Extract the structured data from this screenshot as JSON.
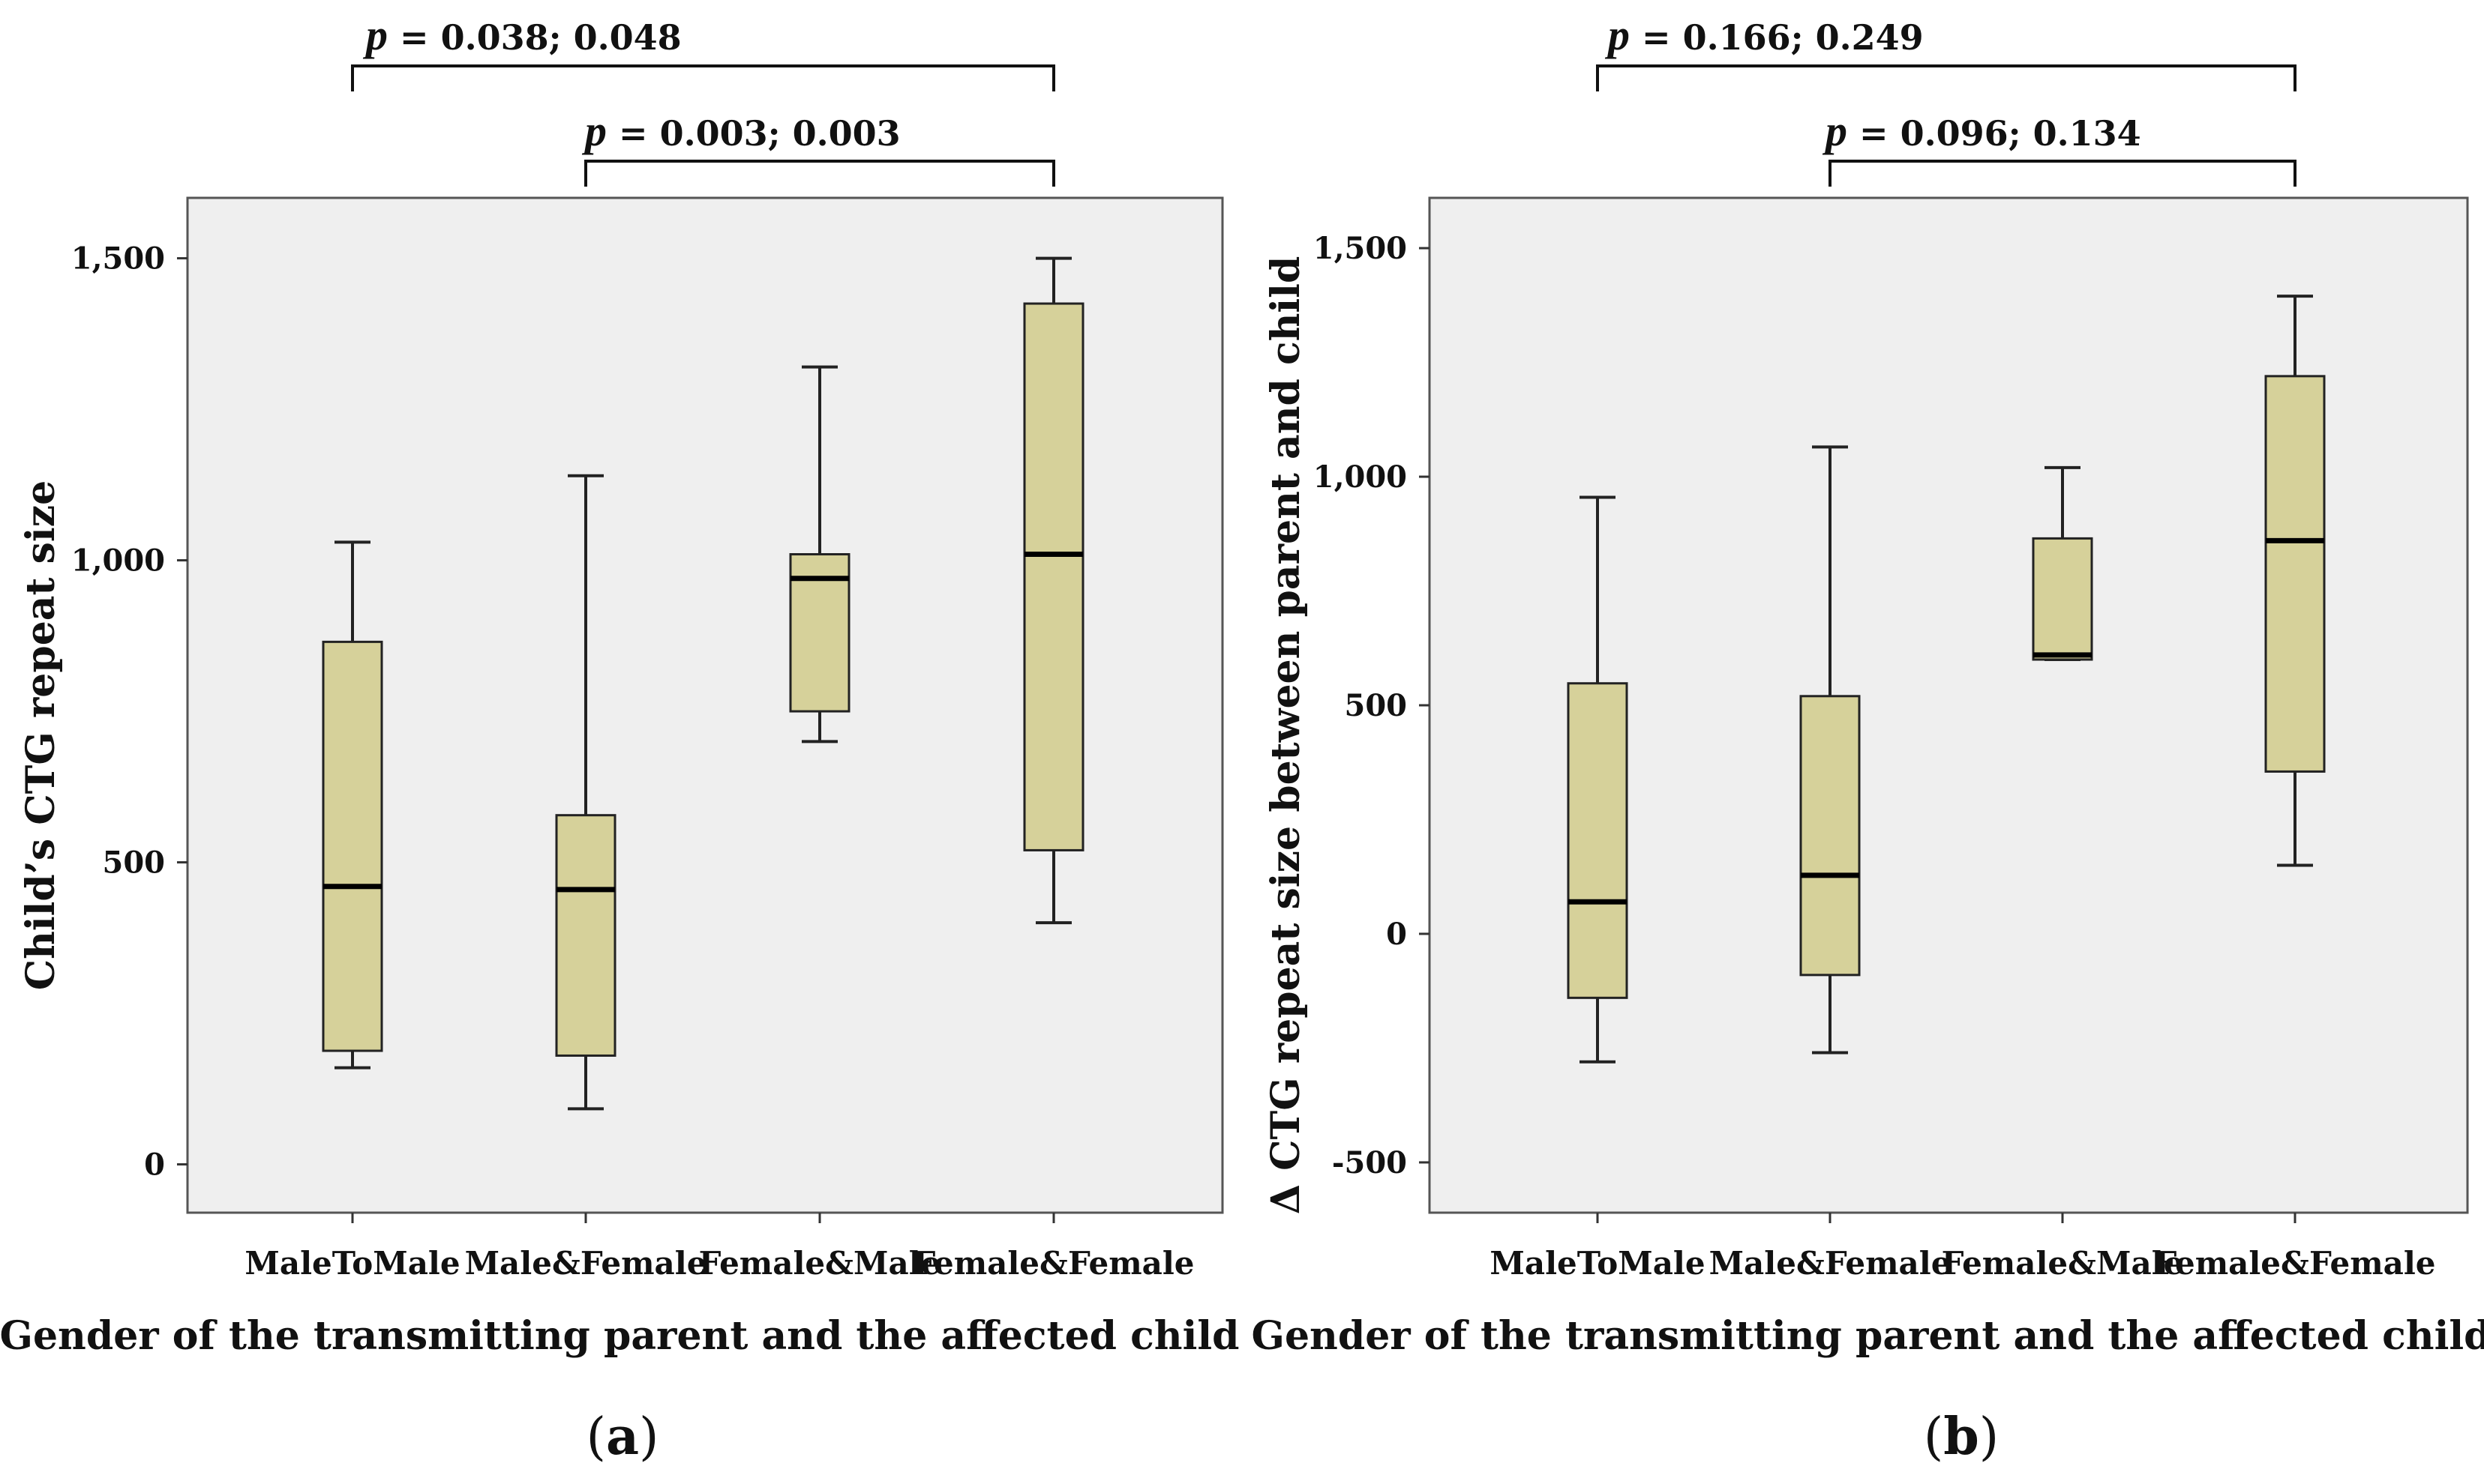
{
  "chart_data": [
    {
      "type": "boxplot",
      "panel_label": "(a)",
      "panel_letter": "a",
      "title": "",
      "xlabel": "Gender of the transmitting parent and the affected child",
      "ylabel": "Child’s CTG repeat size",
      "ylim": [
        -80,
        1600
      ],
      "yticks": [
        0,
        500,
        1000,
        1500
      ],
      "ytick_labels": [
        "0",
        "500",
        "1,000",
        "1,500"
      ],
      "categories": [
        "MaleToMale",
        "Male&Female",
        "Female&Male",
        "Female&Female"
      ],
      "boxes": [
        {
          "category": "MaleToMale",
          "whisker_low": 160,
          "q1": 188,
          "median": 460,
          "q3": 865,
          "whisker_high": 1030
        },
        {
          "category": "Male&Female",
          "whisker_low": 92,
          "q1": 180,
          "median": 455,
          "q3": 578,
          "whisker_high": 1140
        },
        {
          "category": "Female&Male",
          "whisker_low": 700,
          "q1": 750,
          "median": 970,
          "q3": 1010,
          "whisker_high": 1320
        },
        {
          "category": "Female&Female",
          "whisker_low": 400,
          "q1": 520,
          "median": 1010,
          "q3": 1425,
          "whisker_high": 1500
        }
      ],
      "annotations": [
        {
          "from": "MaleToMale",
          "to": "Female&Female",
          "p_symbol": "p",
          "text": " = 0.038; 0.048"
        },
        {
          "from": "Male&Female",
          "to": "Female&Female",
          "p_symbol": "p",
          "text": " = 0.003; 0.003"
        }
      ]
    },
    {
      "type": "boxplot",
      "panel_label": "(b)",
      "panel_letter": "b",
      "title": "",
      "xlabel": "Gender of the transmitting parent and the affected child",
      "ylabel": "Δ CTG repeat size between parent and child",
      "ylim": [
        -610,
        1610
      ],
      "yticks": [
        -500,
        0,
        500,
        1000,
        1500
      ],
      "ytick_labels": [
        "-500",
        "0",
        "500",
        "1,000",
        "1,500"
      ],
      "categories": [
        "MaleToMale",
        "Male&Female",
        "Female&Male",
        "Female&Female"
      ],
      "boxes": [
        {
          "category": "MaleToMale",
          "whisker_low": -280,
          "q1": -140,
          "median": 70,
          "q3": 548,
          "whisker_high": 955
        },
        {
          "category": "Male&Female",
          "whisker_low": -260,
          "q1": -90,
          "median": 128,
          "q3": 520,
          "whisker_high": 1065
        },
        {
          "category": "Female&Male",
          "whisker_low": 600,
          "q1": 600,
          "median": 610,
          "q3": 865,
          "whisker_high": 1020
        },
        {
          "category": "Female&Female",
          "whisker_low": 150,
          "q1": 355,
          "median": 860,
          "q3": 1220,
          "whisker_high": 1395
        }
      ],
      "annotations": [
        {
          "from": "MaleToMale",
          "to": "Female&Female",
          "p_symbol": "p",
          "text": " = 0.166; 0.249"
        },
        {
          "from": "Male&Female",
          "to": "Female&Female",
          "p_symbol": "p",
          "text": " = 0.096; 0.134"
        }
      ]
    }
  ],
  "colors": {
    "plot_background": "#efefef",
    "box_fill": "#d6d19a",
    "line": "#222222",
    "median": "#000000"
  }
}
